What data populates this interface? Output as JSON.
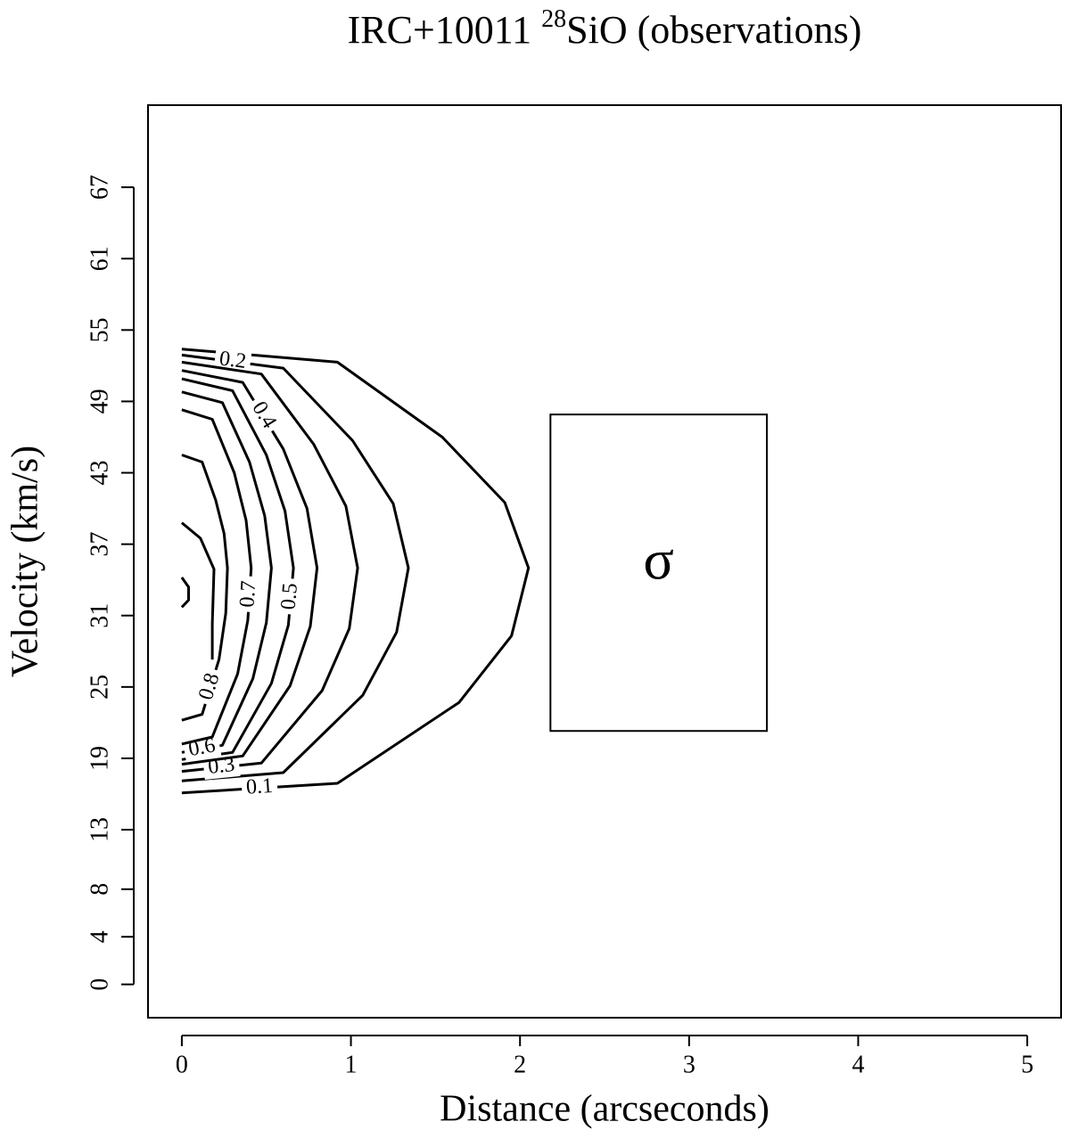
{
  "chart_data": {
    "type": "contour",
    "title": {
      "name": "IRC+10011 ",
      "isotope": "28",
      "molecule": "SiO (observations)"
    },
    "x_label": "Distance (arcseconds)",
    "y_label": "Velocity (km/s)",
    "xlim": [
      -0.2,
      5.2
    ],
    "ylim": [
      -2.8,
      73.9
    ],
    "xticks": [
      0,
      1,
      2,
      3,
      4,
      5
    ],
    "yticks": [
      0,
      4,
      8,
      13,
      19,
      25,
      31,
      37,
      43,
      49,
      55,
      61,
      67
    ],
    "color": "#000000",
    "contours": [
      {
        "level": 0.1,
        "x": [
          0,
          0.92,
          1.54,
          1.91,
          2.05,
          1.95,
          1.64,
          0.92,
          0
        ],
        "y": [
          53.4,
          52.3,
          46.0,
          40.5,
          35,
          29.3,
          23.7,
          16.9,
          16.1
        ]
      },
      {
        "level": 0.2,
        "x": [
          0,
          0.6,
          1.01,
          1.25,
          1.34,
          1.27,
          1.07,
          0.6,
          0
        ],
        "y": [
          52.9,
          51.8,
          45.7,
          40.4,
          35,
          29.6,
          24.3,
          17.8,
          17.1
        ]
      },
      {
        "level": 0.3,
        "x": [
          0,
          0.47,
          0.78,
          0.97,
          1.04,
          0.99,
          0.83,
          0.47,
          0
        ],
        "y": [
          52.3,
          51.3,
          45.4,
          40.2,
          35,
          29.9,
          24.7,
          18.6,
          17.9
        ]
      },
      {
        "level": 0.4,
        "x": [
          0,
          0.36,
          0.6,
          0.74,
          0.8,
          0.76,
          0.64,
          0.36,
          0
        ],
        "y": [
          51.6,
          50.6,
          45.0,
          40.0,
          35,
          30.1,
          25.1,
          19.2,
          18.5
        ]
      },
      {
        "level": 0.5,
        "x": [
          0,
          0.3,
          0.5,
          0.61,
          0.66,
          0.63,
          0.53,
          0.3,
          0
        ],
        "y": [
          50.9,
          49.9,
          44.5,
          39.8,
          35,
          30.2,
          25.3,
          19.5,
          18.9
        ]
      },
      {
        "level": 0.6,
        "x": [
          0,
          0.24,
          0.4,
          0.49,
          0.53,
          0.5,
          0.42,
          0.24,
          0
        ],
        "y": [
          49.8,
          48.9,
          43.9,
          39.4,
          35,
          30.4,
          25.7,
          20.1,
          19.5
        ]
      },
      {
        "level": 0.7,
        "x": [
          0,
          0.18,
          0.31,
          0.38,
          0.41,
          0.39,
          0.33,
          0.18,
          0
        ],
        "y": [
          48.3,
          47.5,
          43.0,
          39.0,
          35,
          30.6,
          26.1,
          20.8,
          20.2
        ]
      },
      {
        "level": 0.8,
        "x": [
          0,
          0.12,
          0.2,
          0.25,
          0.27,
          0.26,
          0.22,
          0.12,
          0
        ],
        "y": [
          44.5,
          43.9,
          40.7,
          37.9,
          35,
          31.2,
          27.3,
          22.7,
          22.2
        ]
      },
      {
        "x": [
          0,
          0.11,
          0.19,
          0.18,
          0.18
        ],
        "y": [
          38.8,
          37.5,
          34.9,
          30.3,
          27.3
        ]
      },
      {
        "x": [
          0,
          0.04,
          0.04,
          0
        ],
        "y": [
          34.2,
          33.4,
          32.3,
          31.7
        ]
      }
    ],
    "annotation": {
      "text": "σ",
      "x": [
        2.18,
        3.46
      ],
      "y": [
        21.3,
        47.9
      ]
    }
  }
}
